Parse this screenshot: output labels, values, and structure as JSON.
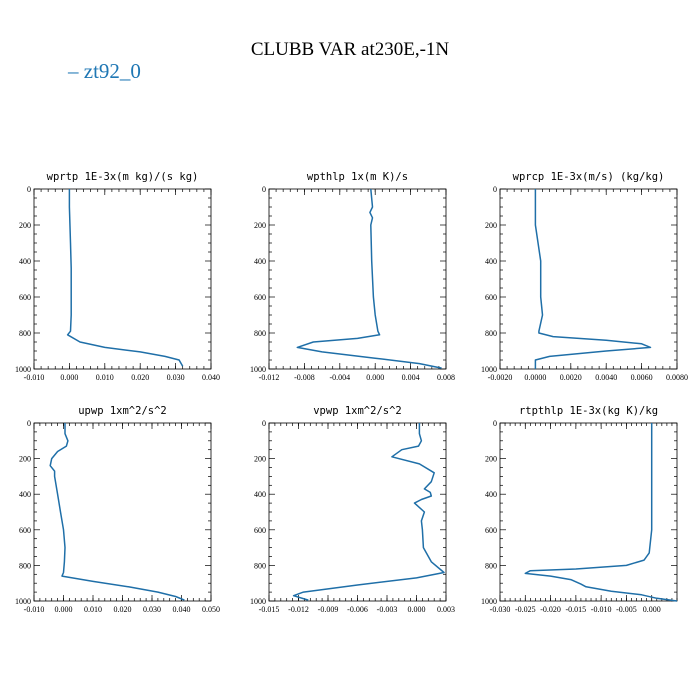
{
  "figure": {
    "title": "CLUBB VAR at230E,-1N",
    "legend": [
      {
        "label": "– zt92_0",
        "color": "#1f77b4"
      }
    ]
  },
  "chart_data": [
    {
      "type": "line",
      "title": "wprtp  1E-3x(m kg)/(s kg)",
      "xlim": [
        -0.01,
        0.04
      ],
      "ylim": [
        1000,
        0
      ],
      "xticks": [
        -0.01,
        0.0,
        0.01,
        0.02,
        0.03,
        0.04
      ],
      "xtick_labels": [
        "-0.010",
        "0.000",
        "0.010",
        "0.020",
        "0.030",
        "0.040"
      ],
      "yticks": [
        0,
        200,
        400,
        600,
        800,
        1000
      ],
      "ytick_labels": [
        "0",
        "200",
        "400",
        "600",
        "800",
        "1000"
      ],
      "series": [
        {
          "x": [
            0.0,
            0.0,
            0.0003,
            0.0005,
            0.0005,
            0.0005,
            0.0003,
            -0.0005,
            0.003,
            0.01,
            0.02,
            0.027,
            0.031,
            0.032
          ],
          "y": [
            0,
            100,
            300,
            440,
            600,
            700,
            790,
            810,
            850,
            880,
            905,
            930,
            950,
            985
          ]
        }
      ]
    },
    {
      "type": "line",
      "title": "wpthlp  1x(m K)/s",
      "xlim": [
        -0.012,
        0.008
      ],
      "ylim": [
        1000,
        0
      ],
      "xticks": [
        -0.012,
        -0.008,
        -0.004,
        0.0,
        0.004,
        0.008
      ],
      "xtick_labels": [
        "-0.012",
        "-0.008",
        "-0.004",
        "0.000",
        "0.004",
        "0.008"
      ],
      "yticks": [
        0,
        200,
        400,
        600,
        800,
        1000
      ],
      "ytick_labels": [
        "0",
        "200",
        "400",
        "600",
        "800",
        "1000"
      ],
      "series": [
        {
          "x": [
            -0.0005,
            -0.0003,
            -0.0006,
            -0.0003,
            -0.0005,
            -0.0004,
            -0.0002,
            0.0,
            0.0003,
            0.0005,
            -0.002,
            -0.007,
            -0.0088,
            -0.006,
            0.0,
            0.005,
            0.0075
          ],
          "y": [
            0,
            100,
            130,
            160,
            200,
            400,
            600,
            700,
            790,
            810,
            830,
            850,
            880,
            905,
            940,
            970,
            995
          ]
        }
      ]
    },
    {
      "type": "line",
      "title": "wprcp  1E-3x(m/s) (kg/kg)",
      "xlim": [
        -0.002,
        0.008
      ],
      "ylim": [
        1000,
        0
      ],
      "xticks": [
        -0.002,
        0.0,
        0.002,
        0.004,
        0.006,
        0.008
      ],
      "xtick_labels": [
        "-0.0020",
        "0.0000",
        "0.0020",
        "0.0040",
        "0.0060",
        "0.0080"
      ],
      "yticks": [
        0,
        200,
        400,
        600,
        800,
        1000
      ],
      "ytick_labels": [
        "0",
        "200",
        "400",
        "600",
        "800",
        "1000"
      ],
      "series": [
        {
          "x": [
            0.0,
            0.0,
            0.0003,
            0.0003,
            0.0003,
            0.0004,
            0.0002,
            0.0002,
            0.001,
            0.004,
            0.006,
            0.0065,
            0.004,
            0.0008,
            0.0,
            0.0
          ],
          "y": [
            0,
            200,
            400,
            440,
            600,
            700,
            790,
            800,
            820,
            840,
            860,
            880,
            900,
            930,
            950,
            1000
          ]
        }
      ]
    },
    {
      "type": "line",
      "title": "upwp  1xm^2/s^2",
      "xlim": [
        -0.01,
        0.05
      ],
      "ylim": [
        1000,
        0
      ],
      "xticks": [
        -0.01,
        0.0,
        0.01,
        0.02,
        0.03,
        0.04,
        0.05
      ],
      "xtick_labels": [
        "-0.010",
        "0.000",
        "0.010",
        "0.020",
        "0.030",
        "0.040",
        "0.050"
      ],
      "yticks": [
        0,
        200,
        400,
        600,
        800,
        1000
      ],
      "ytick_labels": [
        "0",
        "200",
        "400",
        "600",
        "800",
        "1000"
      ],
      "series": [
        {
          "x": [
            0.0005,
            0.0005,
            0.0015,
            0.001,
            -0.002,
            -0.004,
            -0.0045,
            -0.003,
            -0.003,
            -0.002,
            -0.001,
            0.0,
            0.0005,
            0.0003,
            0.0,
            -0.0005,
            0.01,
            0.022,
            0.032,
            0.038,
            0.041
          ],
          "y": [
            0,
            60,
            100,
            130,
            160,
            200,
            240,
            270,
            300,
            400,
            500,
            600,
            700,
            780,
            840,
            860,
            890,
            920,
            950,
            975,
            995
          ]
        }
      ]
    },
    {
      "type": "line",
      "title": "vpwp  1xm^2/s^2",
      "xlim": [
        -0.015,
        0.003
      ],
      "ylim": [
        1000,
        0
      ],
      "xticks": [
        -0.015,
        -0.012,
        -0.009,
        -0.006,
        -0.003,
        0.0,
        0.003
      ],
      "xtick_labels": [
        "-0.015",
        "-0.012",
        "-0.009",
        "-0.006",
        "-0.003",
        "0.000",
        "0.003"
      ],
      "yticks": [
        0,
        200,
        400,
        600,
        800,
        1000
      ],
      "ytick_labels": [
        "0",
        "200",
        "400",
        "600",
        "800",
        "1000"
      ],
      "series": [
        {
          "x": [
            0.0003,
            0.0003,
            0.0005,
            0.0002,
            -0.0015,
            -0.0025,
            0.0003,
            0.0018,
            0.0015,
            0.0008,
            0.0014,
            0.0015,
            0.0005,
            -0.0002,
            0.0008,
            0.0005,
            0.0006,
            0.0007,
            0.0015,
            0.0028,
            0.0,
            -0.006,
            -0.0115,
            -0.0125,
            -0.011
          ],
          "y": [
            0,
            60,
            100,
            130,
            150,
            190,
            230,
            280,
            330,
            370,
            390,
            410,
            430,
            450,
            500,
            550,
            600,
            700,
            780,
            840,
            870,
            910,
            950,
            970,
            995
          ]
        }
      ]
    },
    {
      "type": "line",
      "title": "rtpthlp  1E-3x(kg K)/kg",
      "xlim": [
        -0.03,
        0.005
      ],
      "ylim": [
        1000,
        0
      ],
      "xticks": [
        -0.03,
        -0.025,
        -0.02,
        -0.015,
        -0.01,
        -0.005,
        0.0
      ],
      "xtick_labels": [
        "-0.030",
        "-0.025",
        "-0.020",
        "-0.015",
        "-0.010",
        "-0.005",
        "0.000"
      ],
      "yticks": [
        0,
        200,
        400,
        600,
        800,
        1000
      ],
      "ytick_labels": [
        "0",
        "200",
        "400",
        "600",
        "800",
        "1000"
      ],
      "series": [
        {
          "x": [
            0.0,
            0.0,
            0.0,
            -0.0005,
            -0.0015,
            -0.005,
            -0.015,
            -0.024,
            -0.025,
            -0.02,
            -0.016,
            -0.014,
            -0.013,
            -0.008,
            -0.002,
            0.001,
            0.005
          ],
          "y": [
            0,
            200,
            600,
            730,
            770,
            800,
            820,
            830,
            845,
            860,
            880,
            905,
            920,
            945,
            965,
            985,
            1000
          ]
        }
      ]
    }
  ]
}
